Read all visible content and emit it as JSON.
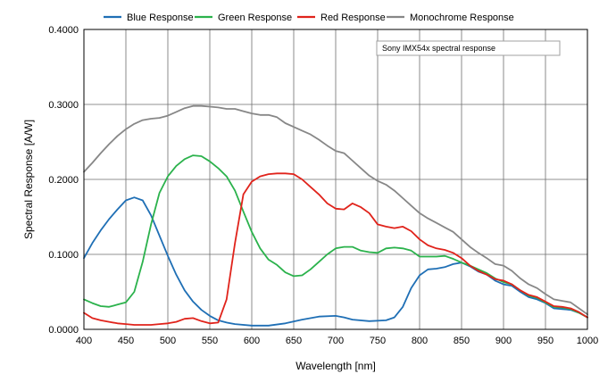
{
  "chart_data": {
    "type": "line",
    "title": "",
    "xlabel": "Wavelength [nm]",
    "ylabel": "Spectral Response [A/W]",
    "xlim": [
      400,
      1000
    ],
    "ylim": [
      0,
      0.4
    ],
    "x_ticks": [
      400,
      450,
      500,
      550,
      600,
      650,
      700,
      750,
      800,
      850,
      900,
      950,
      1000
    ],
    "y_ticks": [
      0,
      0.1,
      0.2,
      0.3,
      0.4
    ],
    "x_tick_labels": [
      "400",
      "450",
      "500",
      "550",
      "600",
      "650",
      "700",
      "750",
      "800",
      "850",
      "900",
      "950",
      "1000"
    ],
    "y_tick_labels": [
      "0.0000",
      "0.1000",
      "0.2000",
      "0.3000",
      "0.4000"
    ],
    "grid": true,
    "legend_position": "top",
    "annotation": "Sony IMX54x spectral response",
    "series": [
      {
        "name": "Blue Response",
        "color": "#1f6fb5",
        "points": [
          [
            400,
            0.095
          ],
          [
            410,
            0.115
          ],
          [
            420,
            0.132
          ],
          [
            430,
            0.147
          ],
          [
            440,
            0.16
          ],
          [
            450,
            0.172
          ],
          [
            460,
            0.176
          ],
          [
            470,
            0.172
          ],
          [
            480,
            0.152
          ],
          [
            490,
            0.125
          ],
          [
            500,
            0.098
          ],
          [
            510,
            0.073
          ],
          [
            520,
            0.052
          ],
          [
            530,
            0.037
          ],
          [
            540,
            0.026
          ],
          [
            550,
            0.018
          ],
          [
            560,
            0.012
          ],
          [
            570,
            0.009
          ],
          [
            580,
            0.007
          ],
          [
            600,
            0.005
          ],
          [
            620,
            0.005
          ],
          [
            640,
            0.008
          ],
          [
            660,
            0.013
          ],
          [
            680,
            0.017
          ],
          [
            700,
            0.018
          ],
          [
            710,
            0.016
          ],
          [
            720,
            0.013
          ],
          [
            740,
            0.011
          ],
          [
            760,
            0.012
          ],
          [
            770,
            0.016
          ],
          [
            780,
            0.03
          ],
          [
            790,
            0.055
          ],
          [
            800,
            0.072
          ],
          [
            810,
            0.08
          ],
          [
            820,
            0.081
          ],
          [
            830,
            0.083
          ],
          [
            840,
            0.087
          ],
          [
            850,
            0.089
          ],
          [
            860,
            0.084
          ],
          [
            870,
            0.077
          ],
          [
            880,
            0.073
          ],
          [
            890,
            0.065
          ],
          [
            900,
            0.06
          ],
          [
            910,
            0.058
          ],
          [
            920,
            0.05
          ],
          [
            930,
            0.043
          ],
          [
            940,
            0.04
          ],
          [
            950,
            0.035
          ],
          [
            960,
            0.028
          ],
          [
            970,
            0.027
          ],
          [
            980,
            0.026
          ],
          [
            990,
            0.022
          ],
          [
            1000,
            0.016
          ]
        ]
      },
      {
        "name": "Green Response",
        "color": "#2bb24c",
        "points": [
          [
            400,
            0.04
          ],
          [
            410,
            0.035
          ],
          [
            420,
            0.031
          ],
          [
            430,
            0.03
          ],
          [
            440,
            0.033
          ],
          [
            450,
            0.036
          ],
          [
            460,
            0.05
          ],
          [
            470,
            0.09
          ],
          [
            480,
            0.14
          ],
          [
            490,
            0.182
          ],
          [
            500,
            0.204
          ],
          [
            510,
            0.218
          ],
          [
            520,
            0.227
          ],
          [
            530,
            0.232
          ],
          [
            540,
            0.231
          ],
          [
            550,
            0.224
          ],
          [
            560,
            0.215
          ],
          [
            570,
            0.204
          ],
          [
            580,
            0.185
          ],
          [
            590,
            0.157
          ],
          [
            600,
            0.13
          ],
          [
            610,
            0.108
          ],
          [
            620,
            0.093
          ],
          [
            630,
            0.086
          ],
          [
            640,
            0.076
          ],
          [
            650,
            0.071
          ],
          [
            660,
            0.072
          ],
          [
            670,
            0.08
          ],
          [
            680,
            0.09
          ],
          [
            690,
            0.1
          ],
          [
            700,
            0.108
          ],
          [
            710,
            0.11
          ],
          [
            720,
            0.11
          ],
          [
            730,
            0.105
          ],
          [
            740,
            0.103
          ],
          [
            750,
            0.102
          ],
          [
            760,
            0.108
          ],
          [
            770,
            0.109
          ],
          [
            780,
            0.108
          ],
          [
            790,
            0.105
          ],
          [
            800,
            0.097
          ],
          [
            810,
            0.097
          ],
          [
            820,
            0.097
          ],
          [
            830,
            0.098
          ],
          [
            840,
            0.094
          ],
          [
            850,
            0.089
          ],
          [
            860,
            0.085
          ],
          [
            870,
            0.08
          ],
          [
            880,
            0.075
          ],
          [
            890,
            0.068
          ],
          [
            900,
            0.063
          ],
          [
            910,
            0.06
          ],
          [
            920,
            0.052
          ],
          [
            930,
            0.045
          ],
          [
            940,
            0.042
          ],
          [
            950,
            0.036
          ],
          [
            960,
            0.03
          ],
          [
            970,
            0.029
          ],
          [
            980,
            0.027
          ],
          [
            990,
            0.022
          ],
          [
            1000,
            0.016
          ]
        ]
      },
      {
        "name": "Red Response",
        "color": "#e0231b",
        "points": [
          [
            400,
            0.022
          ],
          [
            410,
            0.015
          ],
          [
            420,
            0.012
          ],
          [
            430,
            0.01
          ],
          [
            440,
            0.008
          ],
          [
            450,
            0.007
          ],
          [
            460,
            0.006
          ],
          [
            470,
            0.006
          ],
          [
            480,
            0.006
          ],
          [
            490,
            0.007
          ],
          [
            500,
            0.008
          ],
          [
            510,
            0.01
          ],
          [
            520,
            0.014
          ],
          [
            530,
            0.015
          ],
          [
            540,
            0.011
          ],
          [
            550,
            0.008
          ],
          [
            560,
            0.009
          ],
          [
            570,
            0.04
          ],
          [
            580,
            0.115
          ],
          [
            590,
            0.18
          ],
          [
            600,
            0.197
          ],
          [
            610,
            0.204
          ],
          [
            620,
            0.207
          ],
          [
            630,
            0.208
          ],
          [
            640,
            0.208
          ],
          [
            650,
            0.207
          ],
          [
            660,
            0.2
          ],
          [
            670,
            0.19
          ],
          [
            680,
            0.18
          ],
          [
            690,
            0.168
          ],
          [
            700,
            0.161
          ],
          [
            710,
            0.16
          ],
          [
            720,
            0.168
          ],
          [
            730,
            0.163
          ],
          [
            740,
            0.155
          ],
          [
            750,
            0.14
          ],
          [
            760,
            0.137
          ],
          [
            770,
            0.135
          ],
          [
            780,
            0.137
          ],
          [
            790,
            0.131
          ],
          [
            800,
            0.12
          ],
          [
            810,
            0.112
          ],
          [
            820,
            0.108
          ],
          [
            830,
            0.106
          ],
          [
            840,
            0.102
          ],
          [
            850,
            0.095
          ],
          [
            860,
            0.085
          ],
          [
            870,
            0.078
          ],
          [
            880,
            0.073
          ],
          [
            890,
            0.067
          ],
          [
            900,
            0.065
          ],
          [
            910,
            0.06
          ],
          [
            920,
            0.052
          ],
          [
            930,
            0.046
          ],
          [
            940,
            0.043
          ],
          [
            950,
            0.037
          ],
          [
            960,
            0.031
          ],
          [
            970,
            0.03
          ],
          [
            980,
            0.028
          ],
          [
            990,
            0.023
          ],
          [
            1000,
            0.016
          ]
        ]
      },
      {
        "name": "Monochrome Response",
        "color": "#878787",
        "points": [
          [
            400,
            0.21
          ],
          [
            410,
            0.222
          ],
          [
            420,
            0.235
          ],
          [
            430,
            0.247
          ],
          [
            440,
            0.258
          ],
          [
            450,
            0.267
          ],
          [
            460,
            0.274
          ],
          [
            470,
            0.279
          ],
          [
            480,
            0.281
          ],
          [
            490,
            0.282
          ],
          [
            500,
            0.285
          ],
          [
            510,
            0.29
          ],
          [
            520,
            0.295
          ],
          [
            530,
            0.298
          ],
          [
            540,
            0.298
          ],
          [
            550,
            0.297
          ],
          [
            560,
            0.296
          ],
          [
            570,
            0.294
          ],
          [
            580,
            0.294
          ],
          [
            590,
            0.291
          ],
          [
            600,
            0.288
          ],
          [
            610,
            0.286
          ],
          [
            620,
            0.286
          ],
          [
            630,
            0.283
          ],
          [
            640,
            0.275
          ],
          [
            650,
            0.27
          ],
          [
            660,
            0.265
          ],
          [
            670,
            0.26
          ],
          [
            680,
            0.253
          ],
          [
            690,
            0.245
          ],
          [
            700,
            0.238
          ],
          [
            710,
            0.235
          ],
          [
            720,
            0.225
          ],
          [
            730,
            0.215
          ],
          [
            740,
            0.205
          ],
          [
            750,
            0.198
          ],
          [
            760,
            0.193
          ],
          [
            770,
            0.185
          ],
          [
            780,
            0.175
          ],
          [
            790,
            0.165
          ],
          [
            800,
            0.155
          ],
          [
            810,
            0.148
          ],
          [
            820,
            0.142
          ],
          [
            830,
            0.136
          ],
          [
            840,
            0.13
          ],
          [
            850,
            0.12
          ],
          [
            860,
            0.11
          ],
          [
            870,
            0.102
          ],
          [
            880,
            0.095
          ],
          [
            890,
            0.087
          ],
          [
            900,
            0.085
          ],
          [
            910,
            0.078
          ],
          [
            920,
            0.068
          ],
          [
            930,
            0.06
          ],
          [
            940,
            0.055
          ],
          [
            950,
            0.047
          ],
          [
            960,
            0.04
          ],
          [
            970,
            0.038
          ],
          [
            980,
            0.036
          ],
          [
            990,
            0.028
          ],
          [
            1000,
            0.02
          ]
        ]
      }
    ]
  }
}
